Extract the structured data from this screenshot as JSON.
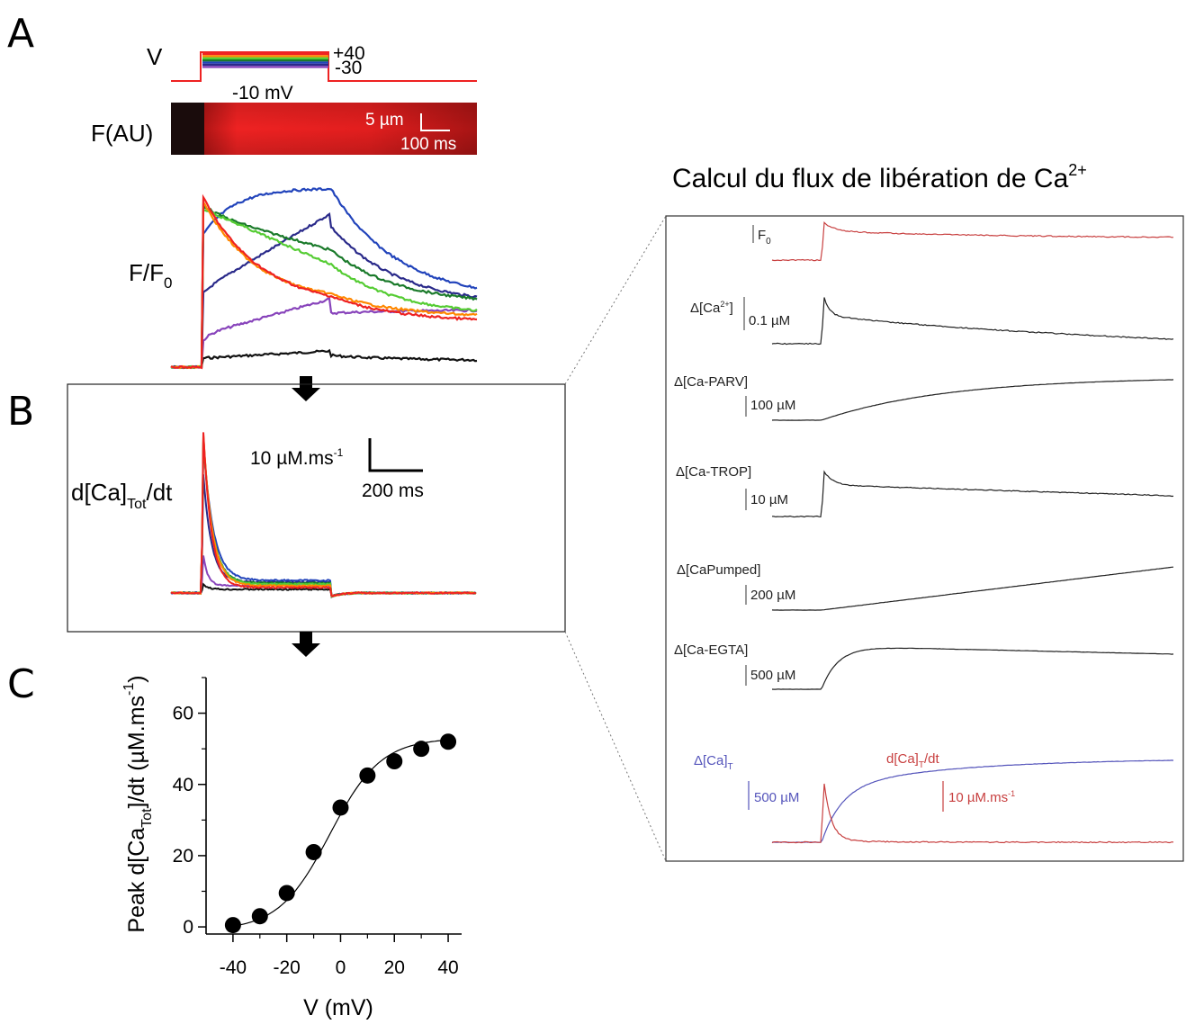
{
  "panels": {
    "a": {
      "letter": "A",
      "v_label": "V",
      "v_high": "+40",
      "v_low": "-30",
      "v_step": "-10 mV",
      "f_label": "F(AU)",
      "scale_space": "5 µm",
      "scale_time": "100 ms",
      "ff0_label": "F/F",
      "ff0_sub": "0"
    },
    "b": {
      "letter": "B",
      "ylabel_main": "d[Ca]",
      "ylabel_sub": "Tot",
      "ylabel_tail": "/dt",
      "scale_amp_main": "10 µM.ms",
      "scale_amp_sup": "-1",
      "scale_time": "200 ms"
    },
    "c": {
      "letter": "C"
    },
    "right": {
      "title_main": "Calcul du flux de libération de Ca",
      "title_sup": "2+",
      "traces": [
        {
          "label": "F",
          "sub": "0",
          "scale": ""
        },
        {
          "label": "Δ[Ca",
          "sup": "2+",
          "tail": "]",
          "scale": "0.1 µM"
        },
        {
          "label": "Δ[Ca-PARV]",
          "scale": "100 µM"
        },
        {
          "label": "Δ[Ca-TROP]",
          "scale": "10 µM"
        },
        {
          "label": "Δ[CaPumped]",
          "scale": "200 µM"
        },
        {
          "label": "Δ[Ca-EGTA]",
          "scale": "500 µM"
        }
      ],
      "final": {
        "blue_label": "Δ[Ca]",
        "blue_sub": "T",
        "blue_scale": "500 µM",
        "red_label": "d[Ca]",
        "red_sub": "T",
        "red_tail": "/dt",
        "red_scale": "10 µM.ms",
        "red_scale_sup": "-1"
      }
    }
  },
  "colors": {
    "red": "#ee2222",
    "blue": "#2244bb",
    "navy": "#2a2a8a",
    "green": "#1a7a2a",
    "lightgreen": "#55cc33",
    "orange": "#ff8800",
    "purple": "#8844bb",
    "black": "#111111",
    "trace_red": "#c84040",
    "trace_blue": "#5555bb"
  },
  "chart_data": {
    "type": "scatter",
    "xlabel": "V (mV)",
    "ylabel": "Peak d[Ca",
    "ylabel_sub": "Tot",
    "ylabel_tail": "]/dt (µM.ms",
    "ylabel_sup": "-1",
    "ylabel_end": ")",
    "xlim": [
      -50,
      45
    ],
    "ylim": [
      -2,
      70
    ],
    "x_ticks": [
      -40,
      -20,
      0,
      20,
      40
    ],
    "y_ticks": [
      0,
      20,
      40,
      60
    ],
    "x": [
      -40,
      -30,
      -20,
      -10,
      0,
      10,
      20,
      30,
      40
    ],
    "y": [
      0.5,
      3,
      9.5,
      21,
      33.5,
      42.5,
      46.5,
      50,
      52
    ],
    "fit": "boltzmann"
  }
}
